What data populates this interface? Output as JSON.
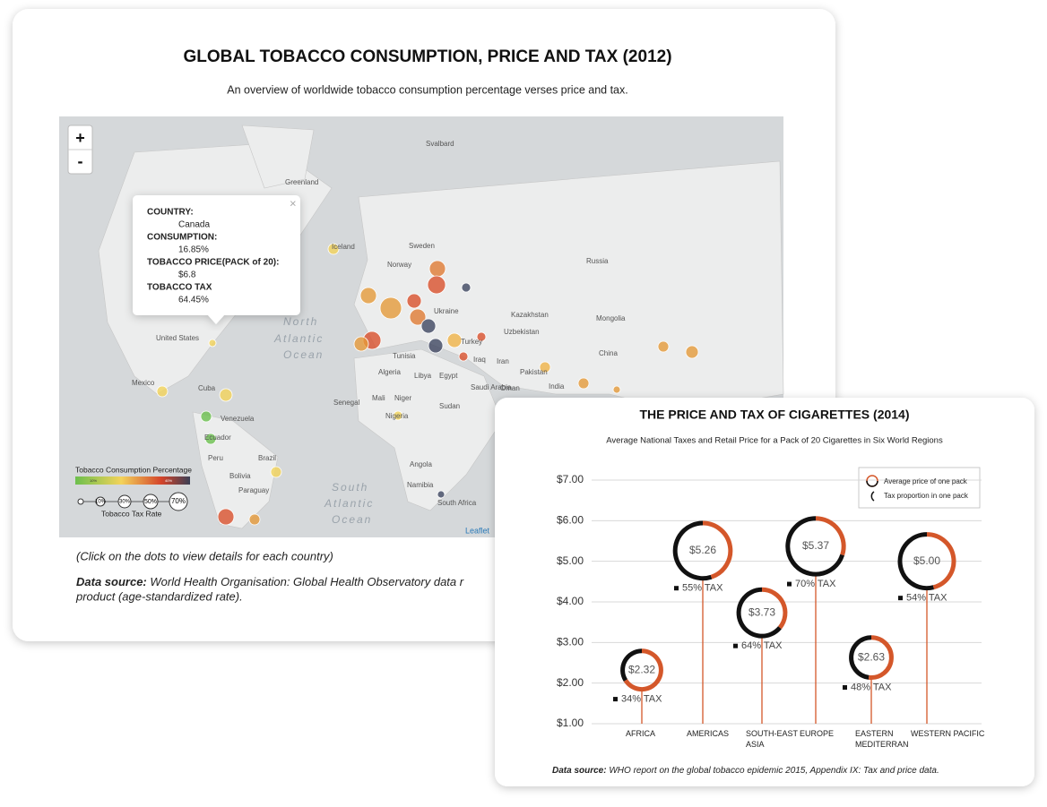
{
  "map_card": {
    "title": "GLOBAL TOBACCO CONSUMPTION, PRICE AND TAX (2012)",
    "subtitle": "An overview of worldwide tobacco consumption percentage verses price and tax.",
    "zoom_in": "+",
    "zoom_out": "-",
    "popup": {
      "close": "×",
      "country_label": "COUNTRY:",
      "country": "Canada",
      "consumption_label": "CONSUMPTION:",
      "consumption": "16.85%",
      "price_label": "TOBACCO PRICE(PACK of 20):",
      "price": "$6.8",
      "tax_label": "TOBACCO TAX",
      "tax": "64.45%"
    },
    "places": [
      "Svalbard",
      "Greenland",
      "Iceland",
      "Sweden",
      "Norway",
      "Russia",
      "Kazakhstan",
      "Mongolia",
      "China",
      "United States",
      "Mexico",
      "Cuba",
      "Venezuela",
      "Ecuador",
      "Peru",
      "Brazil",
      "Bolivia",
      "Paraguay",
      "Algeria",
      "Libya",
      "Egypt",
      "Mali",
      "Niger",
      "Nigeria",
      "Sudan",
      "Turkey",
      "Iraq",
      "Iran",
      "India",
      "Pakistan",
      "Saudi Arabia",
      "Oman",
      "Ukraine",
      "Senegal",
      "Angola",
      "Namibia",
      "South Africa",
      "Uzbekistan",
      "Tunisia"
    ],
    "oceans": [
      "North",
      "Atlantic",
      "Ocean",
      "South",
      "Atlantic",
      "Ocean"
    ],
    "legend": {
      "title": "Tobacco Consumption Percentage",
      "low": "10%",
      "high": "40%",
      "sizes": [
        "10%",
        "30%",
        "50%",
        "70%"
      ],
      "size_title": "Tobacco Tax Rate"
    },
    "attribution": "Leaflet",
    "note": "(Click on the dots to view details for each country)",
    "source_label": "Data source:",
    "source_line1": "World Health Organisation: Global Health Observatory data r",
    "source_line2": "product (age-standardized rate)."
  },
  "chart_data": {
    "type": "donut-bubble",
    "title": "THE PRICE AND TAX OF CIGARETTES (2014)",
    "subtitle": "Average National Taxes and Retail Price for a Pack of 20 Cigarettes in Six World Regions",
    "categories": [
      "AFRICA",
      "AMERICAS",
      "SOUTH-EAST ASIA",
      "EUROPE",
      "EASTERN MEDITERRANEAN",
      "WESTERN PACIFIC"
    ],
    "series": [
      {
        "name": "Average price of one pack",
        "color": "#d4572a",
        "values": [
          2.32,
          5.26,
          3.73,
          5.37,
          2.63,
          5.0
        ],
        "value_labels": [
          "$2.32",
          "$5.26",
          "$3.73",
          "$5.37",
          "$2.63",
          "$5.00"
        ]
      },
      {
        "name": "Tax proportion in one pack",
        "color": "#111111",
        "values": [
          34,
          55,
          64,
          70,
          48,
          54
        ],
        "value_labels": [
          "34% TAX",
          "55% TAX",
          "64% TAX",
          "70% TAX",
          "48% TAX",
          "54% TAX"
        ]
      }
    ],
    "ylim": [
      1,
      7
    ],
    "yticks": [
      {
        "value": 1,
        "label": "$1.00"
      },
      {
        "value": 2,
        "label": "$2.00"
      },
      {
        "value": 3,
        "label": "$3.00"
      },
      {
        "value": 4,
        "label": "$4.00"
      },
      {
        "value": 5,
        "label": "$5.00"
      },
      {
        "value": 6,
        "label": "$6.00"
      },
      {
        "value": 7,
        "label": "$7.00"
      }
    ],
    "grid": true,
    "source_label": "Data source:",
    "source": "WHO report on the global tobacco epidemic 2015, Appendix IX: Tax and price data."
  }
}
